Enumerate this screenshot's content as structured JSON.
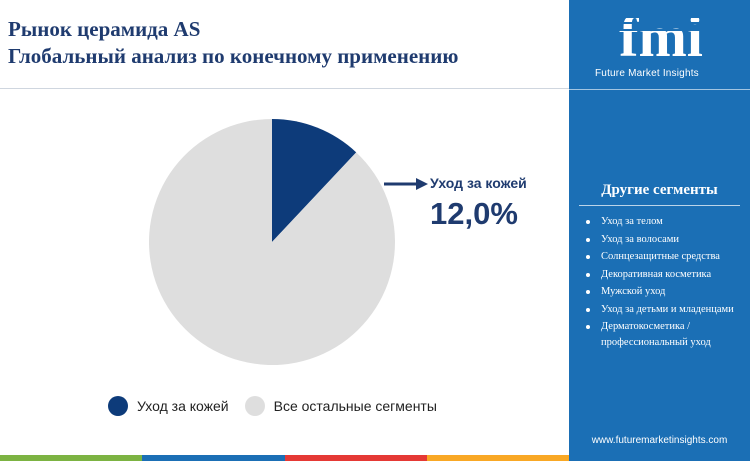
{
  "title": {
    "line1": "Рынок церамида AS",
    "line2": "Глобальный анализ по конечному применению"
  },
  "chart_data": {
    "type": "pie",
    "title": "",
    "categories": [
      "Уход за кожей",
      "Все остальные сегменты"
    ],
    "values": [
      12.0,
      88.0
    ],
    "colors": [
      "#0d3b7a",
      "#dedede"
    ],
    "legend_position": "bottom",
    "annotation": {
      "label": "Уход за кожей",
      "value": "12,0%"
    }
  },
  "sidebar": {
    "logo_text": "fmi",
    "logo_subtitle": "Future Market Insights",
    "segments_title": "Другие сегменты",
    "segments": [
      "Уход за телом",
      "Уход за волосами",
      "Солнцезащитные средства",
      "Декоративная косметика",
      "Мужской уход",
      "Уход за детьми и младенцами",
      "Дерматокосметика / профессиональный уход"
    ],
    "url": "www.futuremarketinsights.com",
    "bg_color": "#1b6fb5"
  },
  "bottom_bar_colors": [
    "#7cb342",
    "#1b6fb5",
    "#e53935",
    "#f9a825"
  ]
}
